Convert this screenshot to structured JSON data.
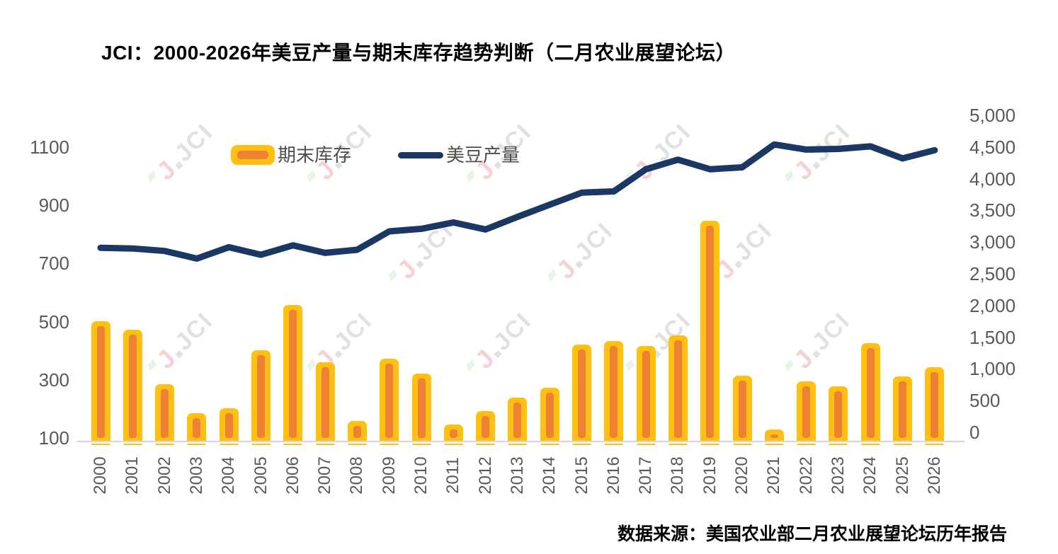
{
  "title": "JCI：2000-2026年美豆产量与期末库存趋势判断（二月农业展望论坛）",
  "legend": {
    "bars_label": "期末库存",
    "line_label": "美豆产量"
  },
  "footer": {
    "source": "数据来源：美国农业部二月农业展望论坛历年报告"
  },
  "watermark": {
    "logo_letter": "J",
    "text": "JCI"
  },
  "colors": {
    "bar_outer": "#FFC011",
    "bar_inner": "#EE8133",
    "line": "#1B3764",
    "axis_text": "#595959",
    "axis_line": "#D6D6D6",
    "watermark_pink": "#F2AEB4",
    "watermark_green": "#D5ECD6",
    "watermark_gray": "#C9C9C9"
  },
  "chart_data": {
    "type": "bar",
    "subtype": "combo-bar-line",
    "title": "JCI：2000-2026年美豆产量与期末库存趋势判断（二月农业展望论坛）",
    "categories": [
      2000,
      2001,
      2002,
      2003,
      2004,
      2005,
      2006,
      2007,
      2008,
      2009,
      2010,
      2011,
      2012,
      2013,
      2014,
      2015,
      2016,
      2017,
      2018,
      2019,
      2020,
      2021,
      2022,
      2023,
      2024,
      2025,
      2026
    ],
    "series": [
      {
        "name": "期末库存",
        "type": "bar",
        "axis": "left",
        "values": [
          510,
          480,
          295,
          195,
          212,
          410,
          565,
          370,
          167,
          382,
          330,
          155,
          202,
          248,
          282,
          430,
          443,
          425,
          462,
          855,
          324,
          140,
          305,
          288,
          435,
          322,
          353
        ]
      },
      {
        "name": "美豆产量",
        "type": "line",
        "axis": "right",
        "values": [
          2910,
          2900,
          2860,
          2740,
          2920,
          2800,
          2950,
          2830,
          2880,
          3170,
          3210,
          3310,
          3200,
          3400,
          3590,
          3780,
          3800,
          4150,
          4300,
          4150,
          4180,
          4540,
          4460,
          4470,
          4510,
          4320,
          4450
        ]
      }
    ],
    "left_axis": {
      "min": 100,
      "max": 1100,
      "tick_step": 200,
      "ticks": [
        1100,
        900,
        700,
        500,
        300,
        100
      ]
    },
    "right_axis": {
      "min": 0,
      "max": 5000,
      "tick_step": 500,
      "ticks_formatted": [
        "5,000",
        "4,500",
        "4,000",
        "3,500",
        "3,000",
        "2,500",
        "2,000",
        "1,500",
        "1,000",
        "500",
        "0"
      ]
    },
    "grid": false,
    "legend_position": "top-left-inside",
    "xlabel": "",
    "ylabel_left": "",
    "ylabel_right": ""
  }
}
